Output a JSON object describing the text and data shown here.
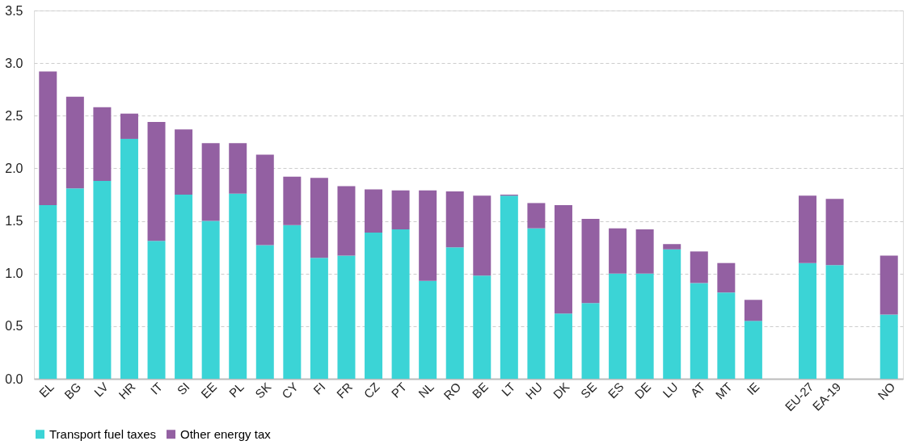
{
  "chart_data": {
    "type": "bar",
    "stacked": true,
    "categories": [
      "EL",
      "BG",
      "LV",
      "HR",
      "IT",
      "SI",
      "EE",
      "PL",
      "SK",
      "CY",
      "FI",
      "FR",
      "CZ",
      "PT",
      "NL",
      "RO",
      "BE",
      "LT",
      "HU",
      "DK",
      "SE",
      "ES",
      "DE",
      "LU",
      "AT",
      "MT",
      "IE",
      null,
      "EU-27",
      "EA-19",
      null,
      "NO"
    ],
    "series": [
      {
        "name": "Transport fuel taxes",
        "color": "#3bd4d6",
        "values": [
          1.65,
          1.81,
          1.88,
          2.28,
          1.31,
          1.75,
          1.5,
          1.76,
          1.27,
          1.46,
          1.15,
          1.17,
          1.39,
          1.42,
          0.93,
          1.25,
          0.98,
          1.74,
          1.43,
          0.62,
          0.72,
          1.0,
          1.0,
          1.23,
          0.91,
          0.82,
          0.55,
          null,
          1.1,
          1.08,
          null,
          0.61
        ]
      },
      {
        "name": "Other energy tax",
        "color": "#9360a2",
        "values": [
          1.27,
          0.87,
          0.7,
          0.24,
          1.13,
          0.62,
          0.74,
          0.48,
          0.86,
          0.46,
          0.76,
          0.66,
          0.41,
          0.37,
          0.86,
          0.53,
          0.76,
          0.01,
          0.24,
          1.03,
          0.8,
          0.43,
          0.42,
          0.05,
          0.3,
          0.28,
          0.2,
          null,
          0.64,
          0.63,
          null,
          0.56
        ]
      }
    ],
    "ylim": [
      0,
      3.5
    ],
    "yticks": [
      {
        "value": 0,
        "label": "0.0"
      },
      0.5,
      {
        "value": 1,
        "label": "1.0"
      },
      1.5,
      {
        "value": 2,
        "label": "2.0"
      },
      2.5,
      {
        "value": 3,
        "label": "3.0"
      },
      3.5
    ],
    "grid": "y",
    "legend": "bottom"
  }
}
